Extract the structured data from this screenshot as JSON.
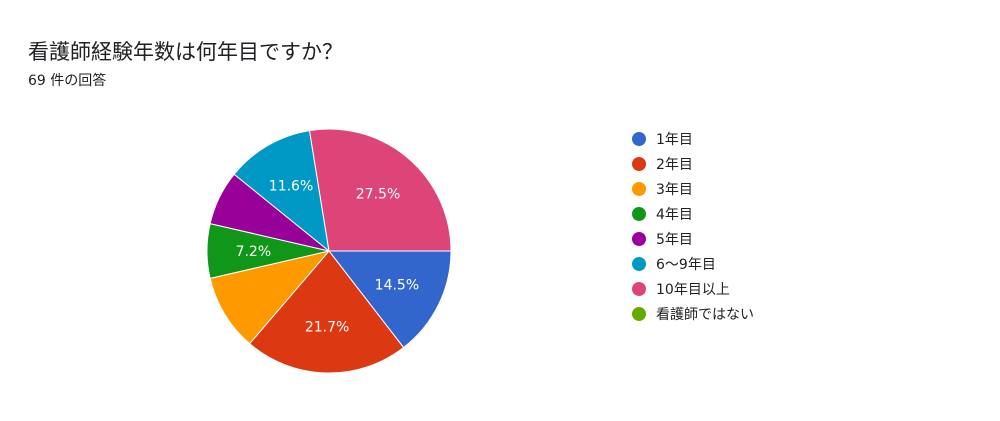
{
  "header": {
    "title": "看護師経験年数は何年目ですか？",
    "response_count": "69 件の回答"
  },
  "chart_data": {
    "type": "pie",
    "title": "看護師経験年数は何年目ですか？",
    "total_responses": 69,
    "legend_position": "right",
    "slices": [
      {
        "label": "1年目",
        "value": 14.5,
        "display": "14.5%",
        "color": "#3366cc"
      },
      {
        "label": "2年目",
        "value": 21.7,
        "display": "21.7%",
        "color": "#dc3912"
      },
      {
        "label": "3年目",
        "value": 10.1,
        "display": "",
        "color": "#ff9900"
      },
      {
        "label": "4年目",
        "value": 7.2,
        "display": "7.2%",
        "color": "#109618"
      },
      {
        "label": "5年目",
        "value": 7.2,
        "display": "",
        "color": "#990099"
      },
      {
        "label": "6〜9年目",
        "value": 11.6,
        "display": "11.6%",
        "color": "#0099c6"
      },
      {
        "label": "10年目以上",
        "value": 27.5,
        "display": "27.5%",
        "color": "#dd4477"
      },
      {
        "label": "看護師ではない",
        "value": 0,
        "display": "",
        "color": "#66aa00"
      }
    ]
  }
}
